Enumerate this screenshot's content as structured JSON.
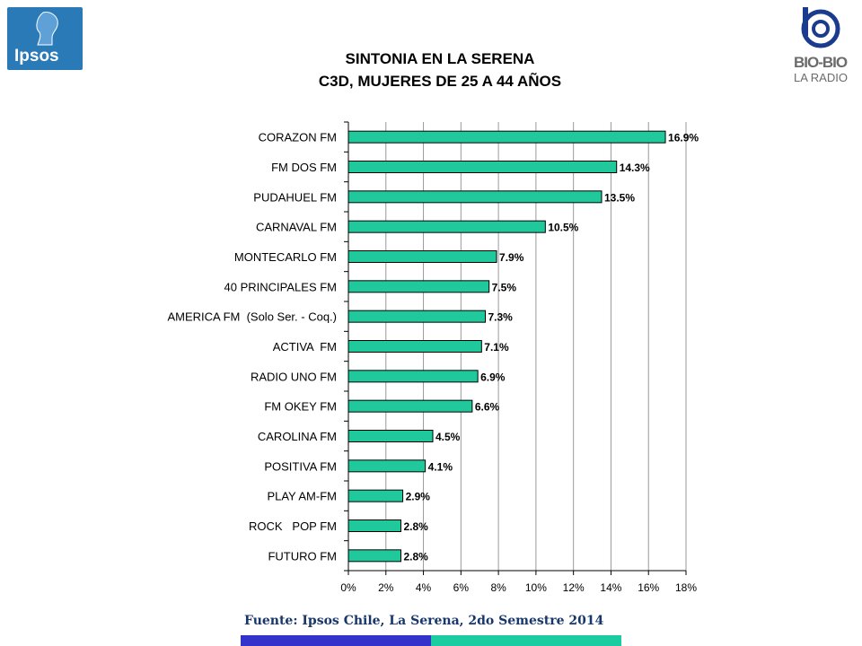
{
  "logos": {
    "left_text": "Ipsos",
    "right_name": "BIO-BIO",
    "right_sub": "LA RADIO"
  },
  "colors": {
    "bar_fill": "#20c99b",
    "ipsos_blue": "#2a7ab8",
    "footer_blue": "#3333cc",
    "footer_teal": "#1acca0",
    "source_text": "#17376b"
  },
  "source": "Fuente: Ipsos Chile, La Serena, 2do Semestre 2014",
  "chart_data": {
    "type": "bar",
    "orientation": "horizontal",
    "title": "SINTONIA EN LA SERENA",
    "subtitle": "C3D, MUJERES DE 25 A 44 AÑOS",
    "categories": [
      "CORAZON FM",
      "FM DOS FM",
      "PUDAHUEL FM",
      "CARNAVAL FM",
      "MONTECARLO FM",
      "40 PRINCIPALES FM",
      "AMERICA FM  (Solo Ser. - Coq.)",
      "ACTIVA  FM",
      "RADIO UNO FM",
      "FM OKEY FM",
      "CAROLINA FM",
      "POSITIVA FM",
      "PLAY AM-FM",
      "ROCK   POP FM",
      "FUTURO FM"
    ],
    "values": [
      16.9,
      14.3,
      13.5,
      10.5,
      7.9,
      7.5,
      7.3,
      7.1,
      6.9,
      6.6,
      4.5,
      4.1,
      2.9,
      2.8,
      2.8
    ],
    "value_labels": [
      "16.9%",
      "14.3%",
      "13.5%",
      "10.5%",
      "7.9%",
      "7.5%",
      "7.3%",
      "7.1%",
      "6.9%",
      "6.6%",
      "4.5%",
      "4.1%",
      "2.9%",
      "2.8%",
      "2.8%"
    ],
    "xlim": [
      0,
      18
    ],
    "xticks": [
      0,
      2,
      4,
      6,
      8,
      10,
      12,
      14,
      16,
      18
    ],
    "xtick_labels": [
      "0%",
      "2%",
      "4%",
      "6%",
      "8%",
      "10%",
      "12%",
      "14%",
      "16%",
      "18%"
    ],
    "grid": "vertical",
    "legend": "none"
  }
}
